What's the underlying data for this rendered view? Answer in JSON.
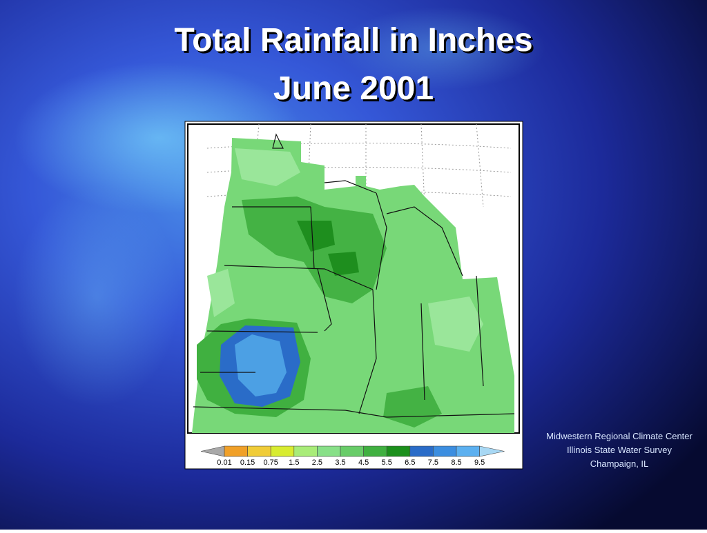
{
  "header": {
    "title": "Total Rainfall in Inches",
    "subtitle": "June 2001"
  },
  "legend": {
    "labels": [
      "0.01",
      "0.15",
      "0.75",
      "1.5",
      "2.5",
      "3.5",
      "4.5",
      "5.5",
      "6.5",
      "7.5",
      "8.5",
      "9.5"
    ],
    "colors": [
      "#a8a8a8",
      "#f0a028",
      "#f0cc38",
      "#d8ec30",
      "#a8ec78",
      "#88e088",
      "#68cc68",
      "#40b040",
      "#1c901c",
      "#2a6cc8",
      "#3c8ee0",
      "#5cb0f0",
      "#a8d8f4"
    ]
  },
  "credit": [
    "Midwestern Regional Climate Center",
    "Illinois State Water Survey",
    "Champaign, IL"
  ]
}
